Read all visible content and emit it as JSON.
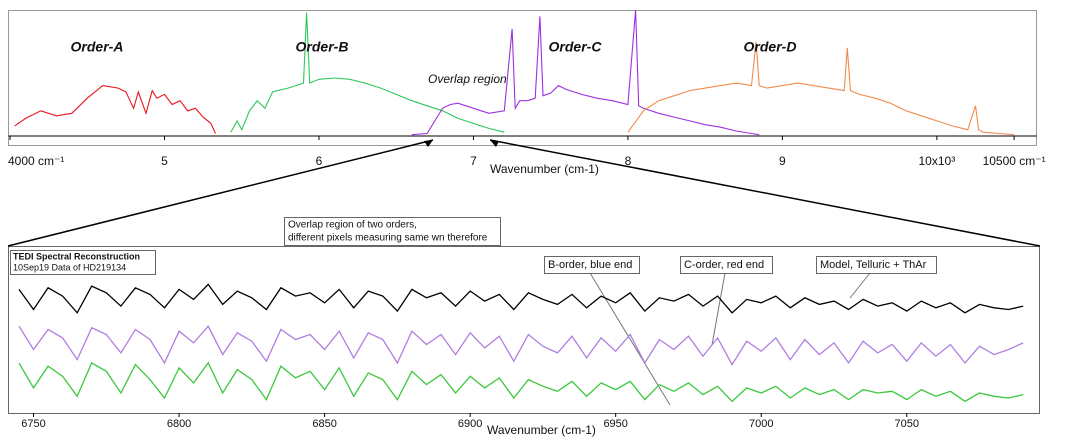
{
  "chart_data": [
    {
      "type": "line",
      "x_label": "Wavenumber (cm-1)",
      "annotations": [
        "Order-A",
        "Order-B",
        "Overlap region",
        "Order-C",
        "Order-D"
      ],
      "xlim": [
        3990,
        10645
      ],
      "ylim": [
        0,
        100
      ],
      "xticks": [
        {
          "value": 4000,
          "label": "4000 cm⁻¹"
        },
        {
          "value": 5000,
          "label": "5"
        },
        {
          "value": 6000,
          "label": "6"
        },
        {
          "value": 7000,
          "label": "7"
        },
        {
          "value": 8000,
          "label": "8"
        },
        {
          "value": 9000,
          "label": "9"
        },
        {
          "value": 10000,
          "label": "10x10³"
        },
        {
          "value": 10500,
          "label": "10500 cm⁻¹"
        }
      ],
      "series": [
        {
          "color": "#e8141e",
          "x": [
            4030,
            4100,
            4200,
            4300,
            4400,
            4500,
            4600,
            4700,
            4750,
            4800,
            4830,
            4880,
            4920,
            4950,
            5000,
            5050,
            5100,
            5150,
            5200,
            5250,
            5300,
            5330
          ],
          "values": [
            8,
            14,
            20,
            16,
            18,
            30,
            40,
            38,
            35,
            22,
            35,
            18,
            36,
            30,
            33,
            25,
            28,
            20,
            22,
            15,
            10,
            2
          ]
        },
        {
          "color": "#2ec85a",
          "x": [
            5430,
            5470,
            5500,
            5550,
            5600,
            5650,
            5700,
            5800,
            5900,
            5920,
            5940,
            6000,
            6100,
            6200,
            6300,
            6400,
            6500,
            6600,
            6700,
            6800,
            6900,
            7000,
            7100,
            7200
          ],
          "values": [
            3,
            12,
            5,
            20,
            28,
            22,
            35,
            38,
            42,
            98,
            42,
            45,
            46,
            45,
            42,
            38,
            33,
            28,
            24,
            20,
            14,
            10,
            6,
            3
          ]
        },
        {
          "color": "#9b30e0",
          "x": [
            6600,
            6700,
            6750,
            6800,
            6850,
            6900,
            7000,
            7100,
            7200,
            7250,
            7270,
            7300,
            7350,
            7400,
            7430,
            7450,
            7500,
            7550,
            7600,
            7700,
            7800,
            7900,
            8000,
            8050,
            8070,
            8100,
            8200,
            8300,
            8400,
            8500,
            8600,
            8700,
            8800,
            8850
          ],
          "values": [
            1,
            2,
            12,
            22,
            25,
            26,
            22,
            18,
            20,
            85,
            22,
            28,
            28,
            30,
            95,
            32,
            34,
            40,
            37,
            33,
            30,
            28,
            25,
            100,
            24,
            22,
            18,
            15,
            12,
            9,
            7,
            4,
            2,
            1
          ]
        },
        {
          "color": "#f08a4b",
          "x": [
            8000,
            8100,
            8200,
            8300,
            8400,
            8500,
            8600,
            8700,
            8800,
            8830,
            8850,
            8900,
            9000,
            9100,
            9200,
            9300,
            9400,
            9420,
            9440,
            9500,
            9600,
            9700,
            9800,
            9900,
            10000,
            10100,
            10200,
            10250,
            10270,
            10300,
            10400,
            10500
          ],
          "values": [
            3,
            20,
            28,
            32,
            36,
            38,
            40,
            42,
            40,
            75,
            40,
            38,
            40,
            42,
            40,
            38,
            36,
            70,
            36,
            33,
            30,
            26,
            20,
            16,
            12,
            8,
            5,
            24,
            5,
            3,
            2,
            1
          ]
        }
      ]
    },
    {
      "type": "line",
      "title": "TEDI Spectral Reconstruction",
      "subtitle": "10Sep19 Data of HD219134",
      "x_label": "Wavenumber (cm-1)",
      "annotations": [
        "Overlap region of two orders,",
        "different pixels measuring same wn therefore",
        "B-order, blue end",
        "C-order, red end",
        "Model, Telluric + ThAr"
      ],
      "xlim": [
        6741.4,
        7095.6
      ],
      "ylim": [
        0,
        100
      ],
      "xticks": [
        6750,
        6800,
        6850,
        6900,
        6950,
        7000,
        7050
      ],
      "x": [
        6745,
        6750,
        6755,
        6760,
        6765,
        6770,
        6775,
        6780,
        6785,
        6790,
        6795,
        6800,
        6805,
        6810,
        6815,
        6820,
        6825,
        6830,
        6835,
        6840,
        6845,
        6850,
        6855,
        6860,
        6865,
        6870,
        6875,
        6880,
        6885,
        6890,
        6895,
        6900,
        6905,
        6910,
        6915,
        6920,
        6925,
        6930,
        6935,
        6940,
        6945,
        6950,
        6955,
        6960,
        6965,
        6970,
        6975,
        6980,
        6985,
        6990,
        6995,
        7000,
        7005,
        7010,
        7015,
        7020,
        7025,
        7030,
        7035,
        7040,
        7045,
        7050,
        7055,
        7060,
        7065,
        7070,
        7075,
        7080,
        7085,
        7090
      ],
      "series": [
        {
          "color": "#000000",
          "values": [
            74,
            62,
            75,
            70,
            60,
            76,
            72,
            64,
            75,
            71,
            63,
            74,
            68,
            77,
            65,
            73,
            69,
            62,
            75,
            70,
            72,
            66,
            74,
            63,
            73,
            70,
            61,
            74,
            69,
            72,
            64,
            73,
            67,
            71,
            62,
            72,
            68,
            65,
            71,
            63,
            70,
            66,
            72,
            61,
            69,
            67,
            71,
            64,
            70,
            60,
            68,
            66,
            70,
            63,
            69,
            65,
            67,
            62,
            68,
            64,
            66,
            61,
            67,
            63,
            66,
            60,
            65,
            63,
            62,
            64
          ]
        },
        {
          "color": "#b07ee0",
          "values": [
            52,
            38,
            50,
            45,
            32,
            51,
            47,
            36,
            50,
            44,
            30,
            49,
            42,
            52,
            35,
            48,
            43,
            31,
            50,
            44,
            47,
            38,
            49,
            33,
            48,
            44,
            30,
            49,
            41,
            47,
            35,
            48,
            39,
            46,
            31,
            47,
            40,
            36,
            46,
            33,
            45,
            37,
            47,
            30,
            44,
            38,
            46,
            34,
            45,
            29,
            43,
            37,
            45,
            32,
            44,
            35,
            42,
            30,
            43,
            36,
            41,
            31,
            42,
            34,
            41,
            30,
            40,
            35,
            38,
            42
          ]
        },
        {
          "color": "#3cc83c",
          "values": [
            30,
            15,
            28,
            22,
            10,
            30,
            25,
            12,
            29,
            20,
            9,
            27,
            18,
            30,
            12,
            26,
            20,
            8,
            28,
            21,
            25,
            14,
            27,
            10,
            24,
            20,
            8,
            25,
            17,
            23,
            12,
            22,
            15,
            21,
            9,
            20,
            16,
            13,
            19,
            10,
            18,
            14,
            19,
            8,
            17,
            13,
            18,
            11,
            16,
            7,
            15,
            12,
            16,
            9,
            15,
            11,
            14,
            8,
            14,
            12,
            13,
            8,
            14,
            10,
            13,
            7,
            12,
            10,
            9,
            11
          ]
        }
      ]
    }
  ]
}
